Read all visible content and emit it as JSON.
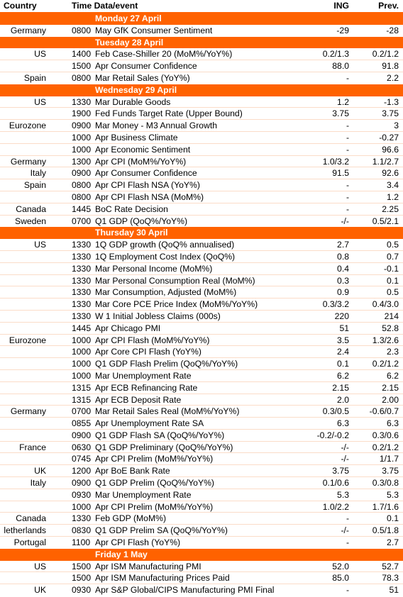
{
  "header": {
    "country": "Country",
    "time_event": "Time Data/event",
    "ing": "ING",
    "prev": "Prev."
  },
  "sections": [
    {
      "day": "Monday 27 April",
      "rows": [
        {
          "country": "Germany",
          "time": "0800",
          "event": "May GfK Consumer Sentiment",
          "ing": "-29",
          "prev": "-28"
        }
      ]
    },
    {
      "day": "Tuesday 28 April",
      "rows": [
        {
          "country": "US",
          "time": "1400",
          "event": "Feb Case-Shiller 20 (MoM%/YoY%)",
          "ing": "0.2/1.3",
          "prev": "0.2/1.2"
        },
        {
          "country": "",
          "time": "1500",
          "event": "Apr Consumer Confidence",
          "ing": "88.0",
          "prev": "91.8"
        },
        {
          "country": "Spain",
          "time": "0800",
          "event": "Mar Retail Sales (YoY%)",
          "ing": "-",
          "prev": "2.2"
        }
      ]
    },
    {
      "day": "Wednesday 29 April",
      "rows": [
        {
          "country": "US",
          "time": "1330",
          "event": "Mar Durable Goods",
          "ing": "1.2",
          "prev": "-1.3"
        },
        {
          "country": "",
          "time": "1900",
          "event": "Fed Funds Target Rate (Upper Bound)",
          "ing": "3.75",
          "prev": "3.75"
        },
        {
          "country": "Eurozone",
          "time": "0900",
          "event": "Mar Money - M3 Annual Growth",
          "ing": "-",
          "prev": "3"
        },
        {
          "country": "",
          "time": "1000",
          "event": "Apr Business Climate",
          "ing": "-",
          "prev": "-0.27"
        },
        {
          "country": "",
          "time": "1000",
          "event": "Apr Economic Sentiment",
          "ing": "-",
          "prev": "96.6"
        },
        {
          "country": "Germany",
          "time": "1300",
          "event": "Apr CPI (MoM%/YoY%)",
          "ing": "1.0/3.2",
          "prev": "1.1/2.7"
        },
        {
          "country": "Italy",
          "time": "0900",
          "event": "Apr Consumer Confidence",
          "ing": "91.5",
          "prev": "92.6"
        },
        {
          "country": "Spain",
          "time": "0800",
          "event": "Apr CPI Flash NSA (YoY%)",
          "ing": "-",
          "prev": "3.4"
        },
        {
          "country": "",
          "time": "0800",
          "event": "Apr CPI Flash NSA (MoM%)",
          "ing": "-",
          "prev": "1.2"
        },
        {
          "country": "Canada",
          "time": "1445",
          "event": "BoC Rate Decision",
          "ing": "-",
          "prev": "2.25"
        },
        {
          "country": "Sweden",
          "time": "0700",
          "event": "Q1 GDP (QoQ%/YoY%)",
          "ing": "-/-",
          "prev": "0.5/2.1"
        }
      ]
    },
    {
      "day": "Thursday 30 April",
      "rows": [
        {
          "country": "US",
          "time": "1330",
          "event": "1Q GDP growth (QoQ% annualised)",
          "ing": "2.7",
          "prev": "0.5"
        },
        {
          "country": "",
          "time": "1330",
          "event": "1Q Employment Cost Index (QoQ%)",
          "ing": "0.8",
          "prev": "0.7"
        },
        {
          "country": "",
          "time": "1330",
          "event": "Mar Personal Income (MoM%)",
          "ing": "0.4",
          "prev": "-0.1"
        },
        {
          "country": "",
          "time": "1330",
          "event": "Mar Personal Consumption Real (MoM%)",
          "ing": "0.3",
          "prev": "0.1"
        },
        {
          "country": "",
          "time": "1330",
          "event": "Mar Consumption, Adjusted (MoM%)",
          "ing": "0.9",
          "prev": "0.5"
        },
        {
          "country": "",
          "time": "1330",
          "event": "Mar Core PCE Price Index (MoM%/YoY%)",
          "ing": "0.3/3.2",
          "prev": "0.4/3.0"
        },
        {
          "country": "",
          "time": "1330",
          "event": "W 1 Initial Jobless Claims (000s)",
          "ing": "220",
          "prev": "214"
        },
        {
          "country": "",
          "time": "1445",
          "event": "Apr Chicago PMI",
          "ing": "51",
          "prev": "52.8"
        },
        {
          "country": "Eurozone",
          "time": "1000",
          "event": "Apr CPI Flash (MoM%/YoY%)",
          "ing": "3.5",
          "prev": "1.3/2.6"
        },
        {
          "country": "",
          "time": "1000",
          "event": "Apr Core CPI Flash (YoY%)",
          "ing": "2.4",
          "prev": "2.3"
        },
        {
          "country": "",
          "time": "1000",
          "event": "Q1 GDP Flash Prelim (QoQ%/YoY%)",
          "ing": "0.1",
          "prev": "0.2/1.2"
        },
        {
          "country": "",
          "time": "1000",
          "event": "Mar Unemployment Rate",
          "ing": "6.2",
          "prev": "6.2"
        },
        {
          "country": "",
          "time": "1315",
          "event": "Apr ECB Refinancing Rate",
          "ing": "2.15",
          "prev": "2.15"
        },
        {
          "country": "",
          "time": "1315",
          "event": "Apr ECB Deposit Rate",
          "ing": "2.0",
          "prev": "2.00"
        },
        {
          "country": "Germany",
          "time": "0700",
          "event": "Mar Retail Sales Real (MoM%/YoY%)",
          "ing": "0.3/0.5",
          "prev": "-0.6/0.7"
        },
        {
          "country": "",
          "time": "0855",
          "event": "Apr Unemployment Rate SA",
          "ing": "6.3",
          "prev": "6.3"
        },
        {
          "country": "",
          "time": "0900",
          "event": "Q1 GDP Flash SA (QoQ%/YoY%)",
          "ing": "-0.2/-0.2",
          "prev": "0.3/0.6"
        },
        {
          "country": "France",
          "time": "0630",
          "event": "Q1 GDP Preliminary (QoQ%/YoY%)",
          "ing": "-/-",
          "prev": "0.2/1.2"
        },
        {
          "country": "",
          "time": "0745",
          "event": "Apr CPI  Prelim (MoM%/YoY%)",
          "ing": "-/-",
          "prev": "1/1.7"
        },
        {
          "country": "UK",
          "time": "1200",
          "event": "Apr BoE Bank Rate",
          "ing": "3.75",
          "prev": "3.75"
        },
        {
          "country": "Italy",
          "time": "0900",
          "event": "Q1 GDP Prelim (QoQ%/YoY%)",
          "ing": "0.1/0.6",
          "prev": "0.3/0.8"
        },
        {
          "country": "",
          "time": "0930",
          "event": "Mar Unemployment Rate",
          "ing": "5.3",
          "prev": "5.3"
        },
        {
          "country": "",
          "time": "1000",
          "event": "Apr CPI Prelim (MoM%/YoY%)",
          "ing": "1.0/2.2",
          "prev": "1.7/1.6"
        },
        {
          "country": "Canada",
          "time": "1330",
          "event": "Feb GDP (MoM%)",
          "ing": "-",
          "prev": "0.1"
        },
        {
          "country": "letherlands",
          "time": "0830",
          "event": "Q1 GDP Prelim SA (QoQ%/YoY%)",
          "ing": "-/-",
          "prev": "0.5/1.8"
        },
        {
          "country": "Portugal",
          "time": "1100",
          "event": "Apr CPI Flash (YoY%)",
          "ing": "-",
          "prev": "2.7"
        }
      ]
    },
    {
      "day": "Friday 1 May",
      "rows": [
        {
          "country": "US",
          "time": "1500",
          "event": "Apr ISM Manufacturing PMI",
          "ing": "52.0",
          "prev": "52.7"
        },
        {
          "country": "",
          "time": "1500",
          "event": "Apr ISM Manufacturing Prices Paid",
          "ing": "85.0",
          "prev": "78.3"
        },
        {
          "country": "UK",
          "time": "0930",
          "event": "Apr S&P Global/CIPS Manufacturing PMI Final",
          "ing": "-",
          "prev": "51"
        }
      ]
    }
  ]
}
